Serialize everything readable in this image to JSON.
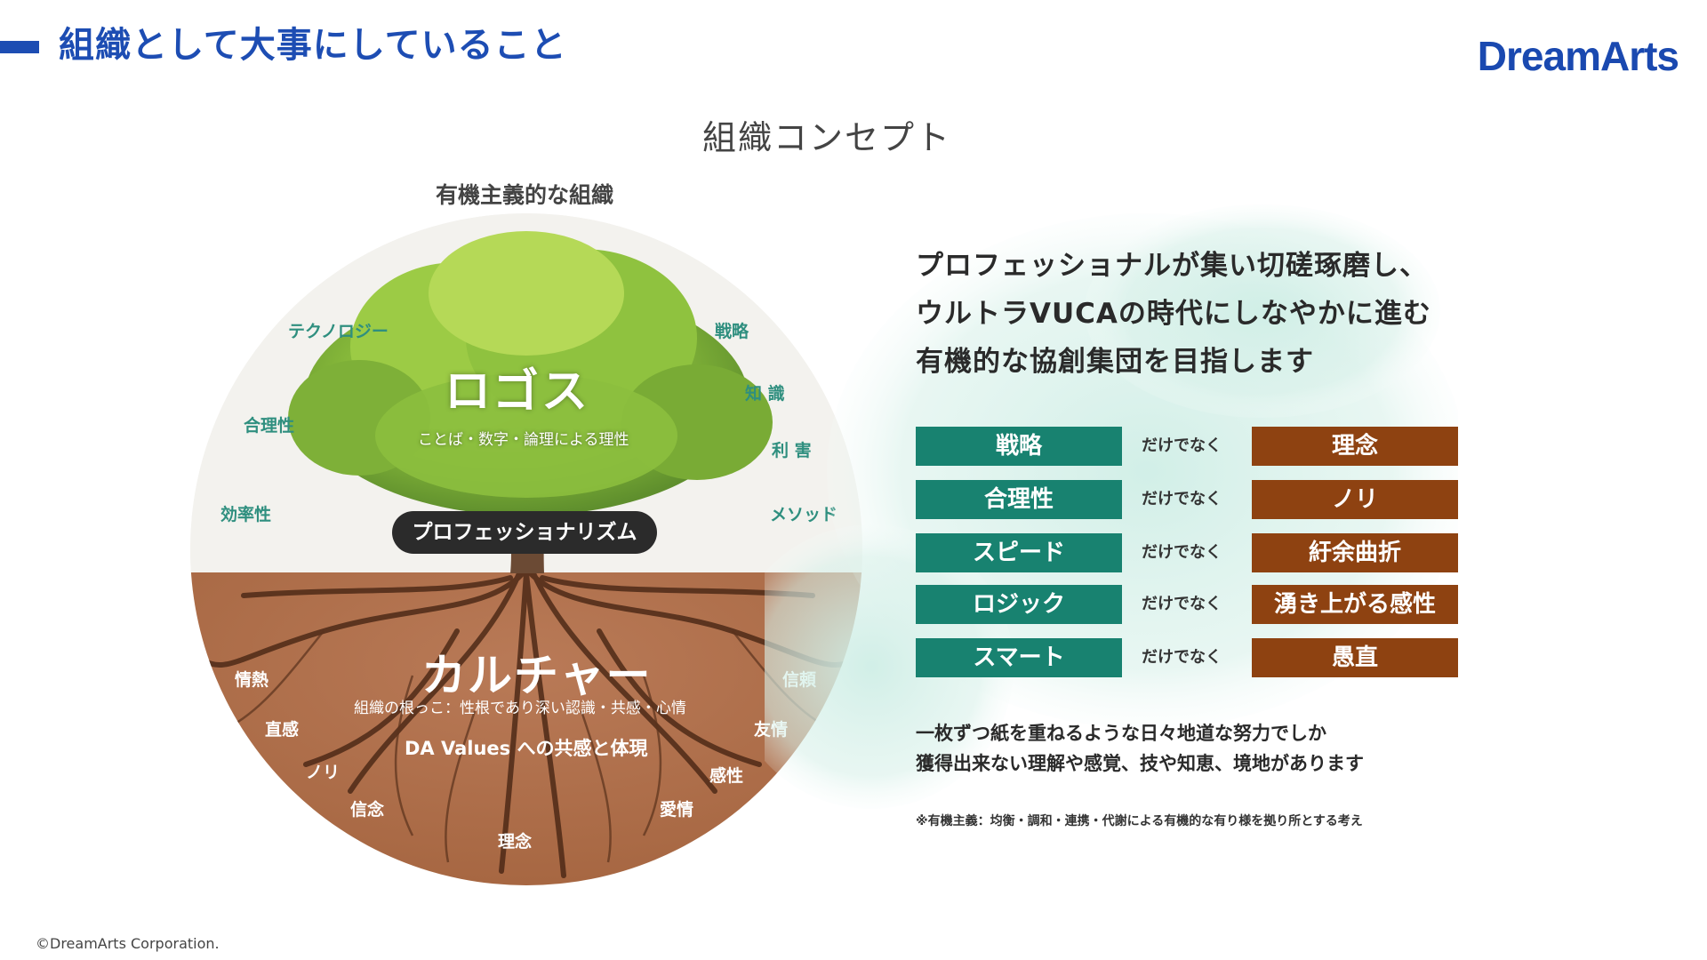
{
  "header": {
    "title": "組織として大事にしていること",
    "logo": "DreamArts",
    "brand_color": "#1d4db3"
  },
  "concept_title": "組織コンセプト",
  "circle": {
    "caption": "有機主義的な組織",
    "logos_title": "ロゴス",
    "logos_subtitle": "ことば・数字・論理による理性",
    "professionalism": "プロフェッショナリズム",
    "culture_title": "カルチャー",
    "culture_subtitle": "組織の根っこ：性根であり深い認識・共感・心情",
    "values_text": "DA Values への共感と体現",
    "top_words": [
      "テクノロジー",
      "合理性",
      "効率性",
      "戦略",
      "知 識",
      "利 害",
      "メソッド"
    ],
    "bottom_words": [
      "情熱",
      "直感",
      "ノリ",
      "信念",
      "理念",
      "信頼",
      "友情",
      "感性",
      "愛情"
    ]
  },
  "right": {
    "headline": [
      "プロフェッショナルが集い切磋琢磨し、",
      "ウルトラVUCAの時代にしなやかに進む",
      "有機的な協創集団を目指します"
    ],
    "contrasts": [
      {
        "left": "戦略",
        "middle": "だけでなく",
        "right": "理念"
      },
      {
        "left": "合理性",
        "middle": "だけでなく",
        "right": "ノリ"
      },
      {
        "left": "スピード",
        "middle": "だけでなく",
        "right": "紆余曲折"
      },
      {
        "left": "ロジック",
        "middle": "だけでなく",
        "right": "湧き上がる感性"
      },
      {
        "left": "スマート",
        "middle": "だけでなく",
        "right": "愚直"
      }
    ],
    "body": [
      "一枚ずつ紙を重ねるような日々地道な努力でしか",
      "獲得出来ない理解や感覚、技や知恵、境地があります"
    ],
    "footnote": "※有機主義：均衡・調和・連携・代謝による有機的な有り様を拠り所とする考え",
    "colors": {
      "green": "#188270",
      "brown": "#8e4211"
    }
  },
  "footer": {
    "copyright": "©DreamArts Corporation."
  }
}
